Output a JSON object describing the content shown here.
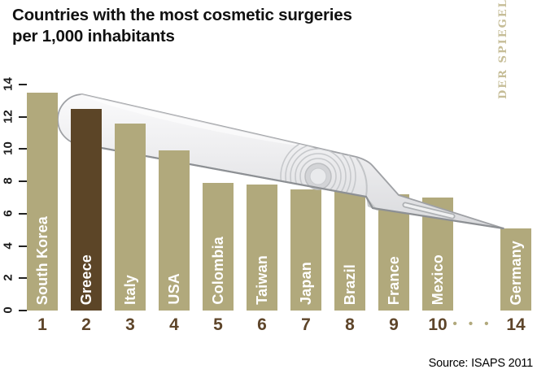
{
  "header": {
    "title": "Countries with the most cosmetic surgeries\nper 1,000 inhabitants"
  },
  "watermark": "DER SPIEGEL",
  "footer": {
    "source": "Source: ISAPS 2011"
  },
  "chart_data": {
    "type": "bar",
    "title": "Countries with the most cosmetic surgeries per 1,000 inhabitants",
    "ylabel": "cosmetic surgeries per 1,000 inhabitants",
    "ylim": [
      0,
      14
    ],
    "yticks": [
      0,
      2,
      4,
      6,
      8,
      10,
      12,
      14
    ],
    "grid": false,
    "highlight_index": 1,
    "highlighted_country": "Greece",
    "ellipsis_label": "• • •",
    "categories": [
      "South Korea",
      "Greece",
      "Italy",
      "USA",
      "Colombia",
      "Taiwan",
      "Japan",
      "Brazil",
      "France",
      "Mexico",
      "Germany"
    ],
    "ranks": [
      "1",
      "2",
      "3",
      "4",
      "5",
      "6",
      "7",
      "8",
      "9",
      "10",
      "14"
    ],
    "values": [
      13.5,
      12.5,
      11.6,
      9.9,
      7.9,
      7.8,
      7.5,
      7.4,
      7.2,
      7.0,
      5.1
    ],
    "bars": [
      {
        "label": "South Korea",
        "rank": "1",
        "value": 13.5
      },
      {
        "label": "Greece",
        "rank": "2",
        "value": 12.5
      },
      {
        "label": "Italy",
        "rank": "3",
        "value": 11.6
      },
      {
        "label": "USA",
        "rank": "4",
        "value": 9.9
      },
      {
        "label": "Colombia",
        "rank": "5",
        "value": 7.9
      },
      {
        "label": "Taiwan",
        "rank": "6",
        "value": 7.8
      },
      {
        "label": "Japan",
        "rank": "7",
        "value": 7.5
      },
      {
        "label": "Brazil",
        "rank": "8",
        "value": 7.4
      },
      {
        "label": "France",
        "rank": "9",
        "value": 7.2
      },
      {
        "label": "Mexico",
        "rank": "10",
        "value": 7.0
      },
      {
        "label": "Germany",
        "rank": "14",
        "value": 5.1
      }
    ]
  },
  "colors": {
    "bar": "#b1a97c",
    "bar_highlight": "#5c4527",
    "bar_label": "#ffffff",
    "rank": "#5e452a",
    "ellipsis": "#b1a97c",
    "watermark": "#c6bd97",
    "text": "#111111"
  }
}
